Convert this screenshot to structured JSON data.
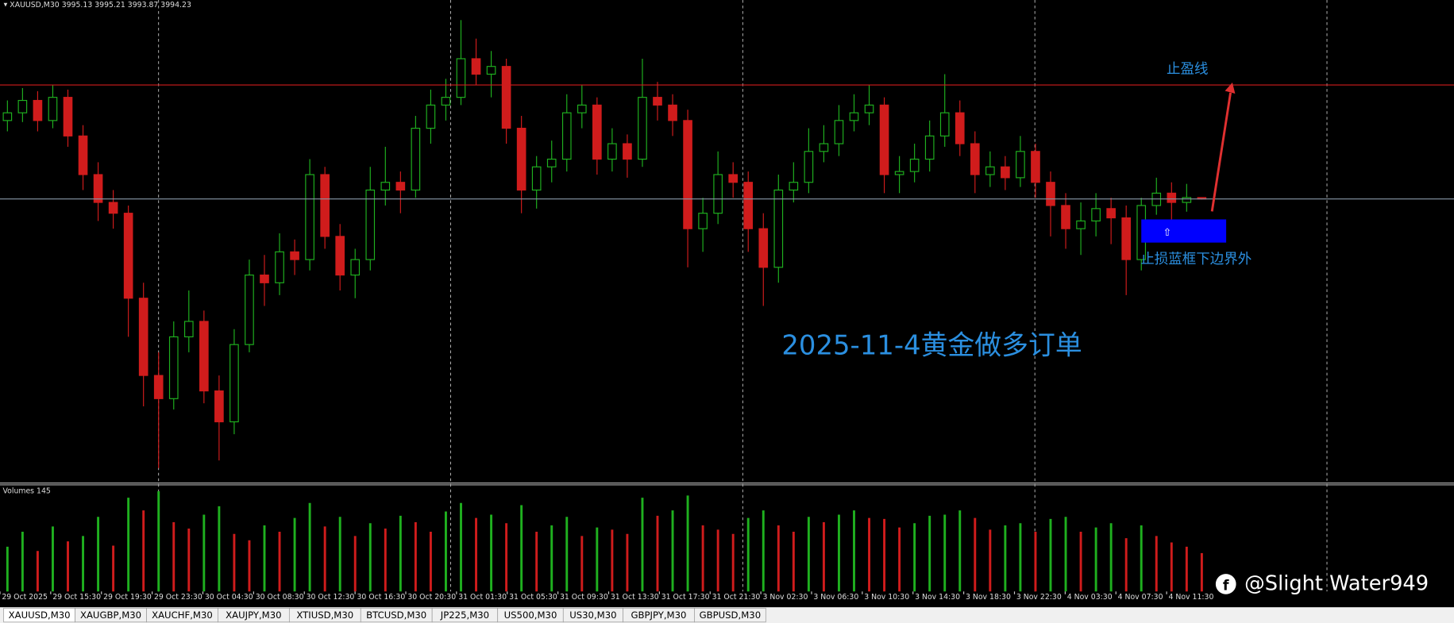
{
  "header": {
    "symbol": "XAUUSD,M30"
  },
  "chart": {
    "type": "candlestick",
    "ylim": [
      3811,
      4123
    ],
    "up_color": "#1fb01f",
    "down_color": "#d01c1c",
    "take_profit": 4068,
    "stop_box": {
      "price": [
        3966,
        3981
      ],
      "from": 75,
      "to": 80,
      "color": "#0000ff"
    },
    "candles": [
      [
        4045,
        4058,
        4038,
        4050
      ],
      [
        4050,
        4066,
        4044,
        4058
      ],
      [
        4058,
        4064,
        4038,
        4045
      ],
      [
        4045,
        4068,
        4040,
        4060
      ],
      [
        4060,
        4065,
        4028,
        4035
      ],
      [
        4035,
        4042,
        4000,
        4010
      ],
      [
        4010,
        4018,
        3980,
        3992
      ],
      [
        3992,
        4000,
        3975,
        3985
      ],
      [
        3985,
        3990,
        3905,
        3930
      ],
      [
        3930,
        3940,
        3860,
        3880
      ],
      [
        3880,
        3895,
        3820,
        3865
      ],
      [
        3865,
        3915,
        3858,
        3905
      ],
      [
        3905,
        3935,
        3895,
        3915
      ],
      [
        3915,
        3922,
        3862,
        3870
      ],
      [
        3870,
        3880,
        3825,
        3850
      ],
      [
        3850,
        3910,
        3842,
        3900
      ],
      [
        3900,
        3955,
        3895,
        3945
      ],
      [
        3945,
        3958,
        3925,
        3940
      ],
      [
        3940,
        3972,
        3932,
        3960
      ],
      [
        3960,
        3968,
        3945,
        3955
      ],
      [
        3955,
        4020,
        3948,
        4010
      ],
      [
        4010,
        4015,
        3962,
        3970
      ],
      [
        3970,
        3978,
        3935,
        3945
      ],
      [
        3945,
        3962,
        3930,
        3955
      ],
      [
        3955,
        4015,
        3948,
        4000
      ],
      [
        4000,
        4028,
        3990,
        4005
      ],
      [
        4005,
        4012,
        3985,
        4000
      ],
      [
        4000,
        4048,
        3995,
        4040
      ],
      [
        4040,
        4065,
        4030,
        4055
      ],
      [
        4055,
        4072,
        4045,
        4060
      ],
      [
        4060,
        4110,
        4055,
        4085
      ],
      [
        4085,
        4098,
        4068,
        4075
      ],
      [
        4075,
        4090,
        4060,
        4080
      ],
      [
        4080,
        4085,
        4030,
        4040
      ],
      [
        4040,
        4048,
        3985,
        4000
      ],
      [
        4000,
        4022,
        3988,
        4015
      ],
      [
        4015,
        4032,
        4005,
        4020
      ],
      [
        4020,
        4062,
        4012,
        4050
      ],
      [
        4050,
        4068,
        4040,
        4055
      ],
      [
        4055,
        4060,
        4010,
        4020
      ],
      [
        4020,
        4040,
        4012,
        4030
      ],
      [
        4030,
        4036,
        4008,
        4020
      ],
      [
        4020,
        4085,
        4015,
        4060
      ],
      [
        4060,
        4070,
        4045,
        4055
      ],
      [
        4055,
        4062,
        4035,
        4045
      ],
      [
        4045,
        4052,
        3950,
        3975
      ],
      [
        3975,
        3995,
        3960,
        3985
      ],
      [
        3985,
        4025,
        3978,
        4010
      ],
      [
        4010,
        4018,
        3995,
        4005
      ],
      [
        4005,
        4012,
        3960,
        3975
      ],
      [
        3975,
        3985,
        3925,
        3950
      ],
      [
        3950,
        4010,
        3940,
        4000
      ],
      [
        4000,
        4018,
        3992,
        4005
      ],
      [
        4005,
        4040,
        3998,
        4025
      ],
      [
        4025,
        4042,
        4018,
        4030
      ],
      [
        4030,
        4055,
        4022,
        4045
      ],
      [
        4045,
        4062,
        4038,
        4050
      ],
      [
        4050,
        4068,
        4042,
        4055
      ],
      [
        4055,
        4060,
        3998,
        4010
      ],
      [
        4010,
        4022,
        3998,
        4012
      ],
      [
        4012,
        4030,
        4005,
        4020
      ],
      [
        4020,
        4045,
        4012,
        4035
      ],
      [
        4035,
        4075,
        4028,
        4050
      ],
      [
        4050,
        4058,
        4022,
        4030
      ],
      [
        4030,
        4038,
        3998,
        4010
      ],
      [
        4010,
        4025,
        4002,
        4015
      ],
      [
        4015,
        4022,
        4000,
        4008
      ],
      [
        4008,
        4035,
        4002,
        4025
      ],
      [
        4025,
        4030,
        3995,
        4005
      ],
      [
        4005,
        4012,
        3970,
        3990
      ],
      [
        3990,
        3998,
        3962,
        3975
      ],
      [
        3975,
        3992,
        3958,
        3980
      ],
      [
        3980,
        3998,
        3970,
        3988
      ],
      [
        3988,
        3995,
        3965,
        3982
      ],
      [
        3982,
        3990,
        3932,
        3955
      ],
      [
        3955,
        3995,
        3948,
        3990
      ],
      [
        3990,
        4008,
        3984,
        3998
      ],
      [
        3998,
        4005,
        3978,
        3992
      ],
      [
        3992,
        4004,
        3986,
        3995.13
      ],
      [
        3995.13,
        3995.21,
        3993.87,
        3994.23
      ]
    ],
    "volume_label": "Volumes 145",
    "vlim": [
      0,
      1000
    ],
    "volumes": [
      420,
      560,
      380,
      610,
      470,
      520,
      700,
      430,
      880,
      760,
      940,
      650,
      590,
      720,
      800,
      540,
      480,
      620,
      560,
      690,
      830,
      610,
      700,
      520,
      640,
      590,
      710,
      650,
      560,
      750,
      830,
      690,
      720,
      640,
      810,
      560,
      620,
      700,
      520,
      600,
      580,
      540,
      880,
      710,
      760,
      900,
      620,
      580,
      540,
      690,
      760,
      620,
      560,
      700,
      650,
      720,
      760,
      690,
      680,
      600,
      640,
      710,
      720,
      760,
      690,
      580,
      620,
      640,
      560,
      680,
      700,
      560,
      600,
      640,
      500,
      620,
      520,
      460,
      420,
      360
    ]
  },
  "annotations": {
    "take_profit_label": "止盈线",
    "stop_label": "止损蓝框下边界外",
    "box_arrow": "⇧",
    "title": "2025-11-4黄金做多订单"
  },
  "time_labels": [
    "29 Oct 2025",
    "29 Oct 15:30",
    "29 Oct 19:30",
    "29 Oct 23:30",
    "30 Oct 04:30",
    "30 Oct 08:30",
    "30 Oct 12:30",
    "30 Oct 16:30",
    "30 Oct 20:30",
    "31 Oct 01:30",
    "31 Oct 05:30",
    "31 Oct 09:30",
    "31 Oct 13:30",
    "31 Oct 17:30",
    "31 Oct 21:30",
    "3 Nov 02:30",
    "3 Nov 06:30",
    "3 Nov 10:30",
    "3 Nov 14:30",
    "3 Nov 18:30",
    "3 Nov 22:30",
    "4 Nov 03:30",
    "4 Nov 07:30",
    "4 Nov 11:30"
  ],
  "tabs": [
    "XAUUSD,M30",
    "XAUGBP,M30",
    "XAUCHF,M30",
    "XAUJPY,M30",
    "XTIUSD,M30",
    "BTCUSD,M30",
    "JP225,M30",
    "US500,M30",
    "US30,M30",
    "GBPJPY,M30",
    "GBPUSD,M30"
  ],
  "watermark": "@Slight Water949"
}
